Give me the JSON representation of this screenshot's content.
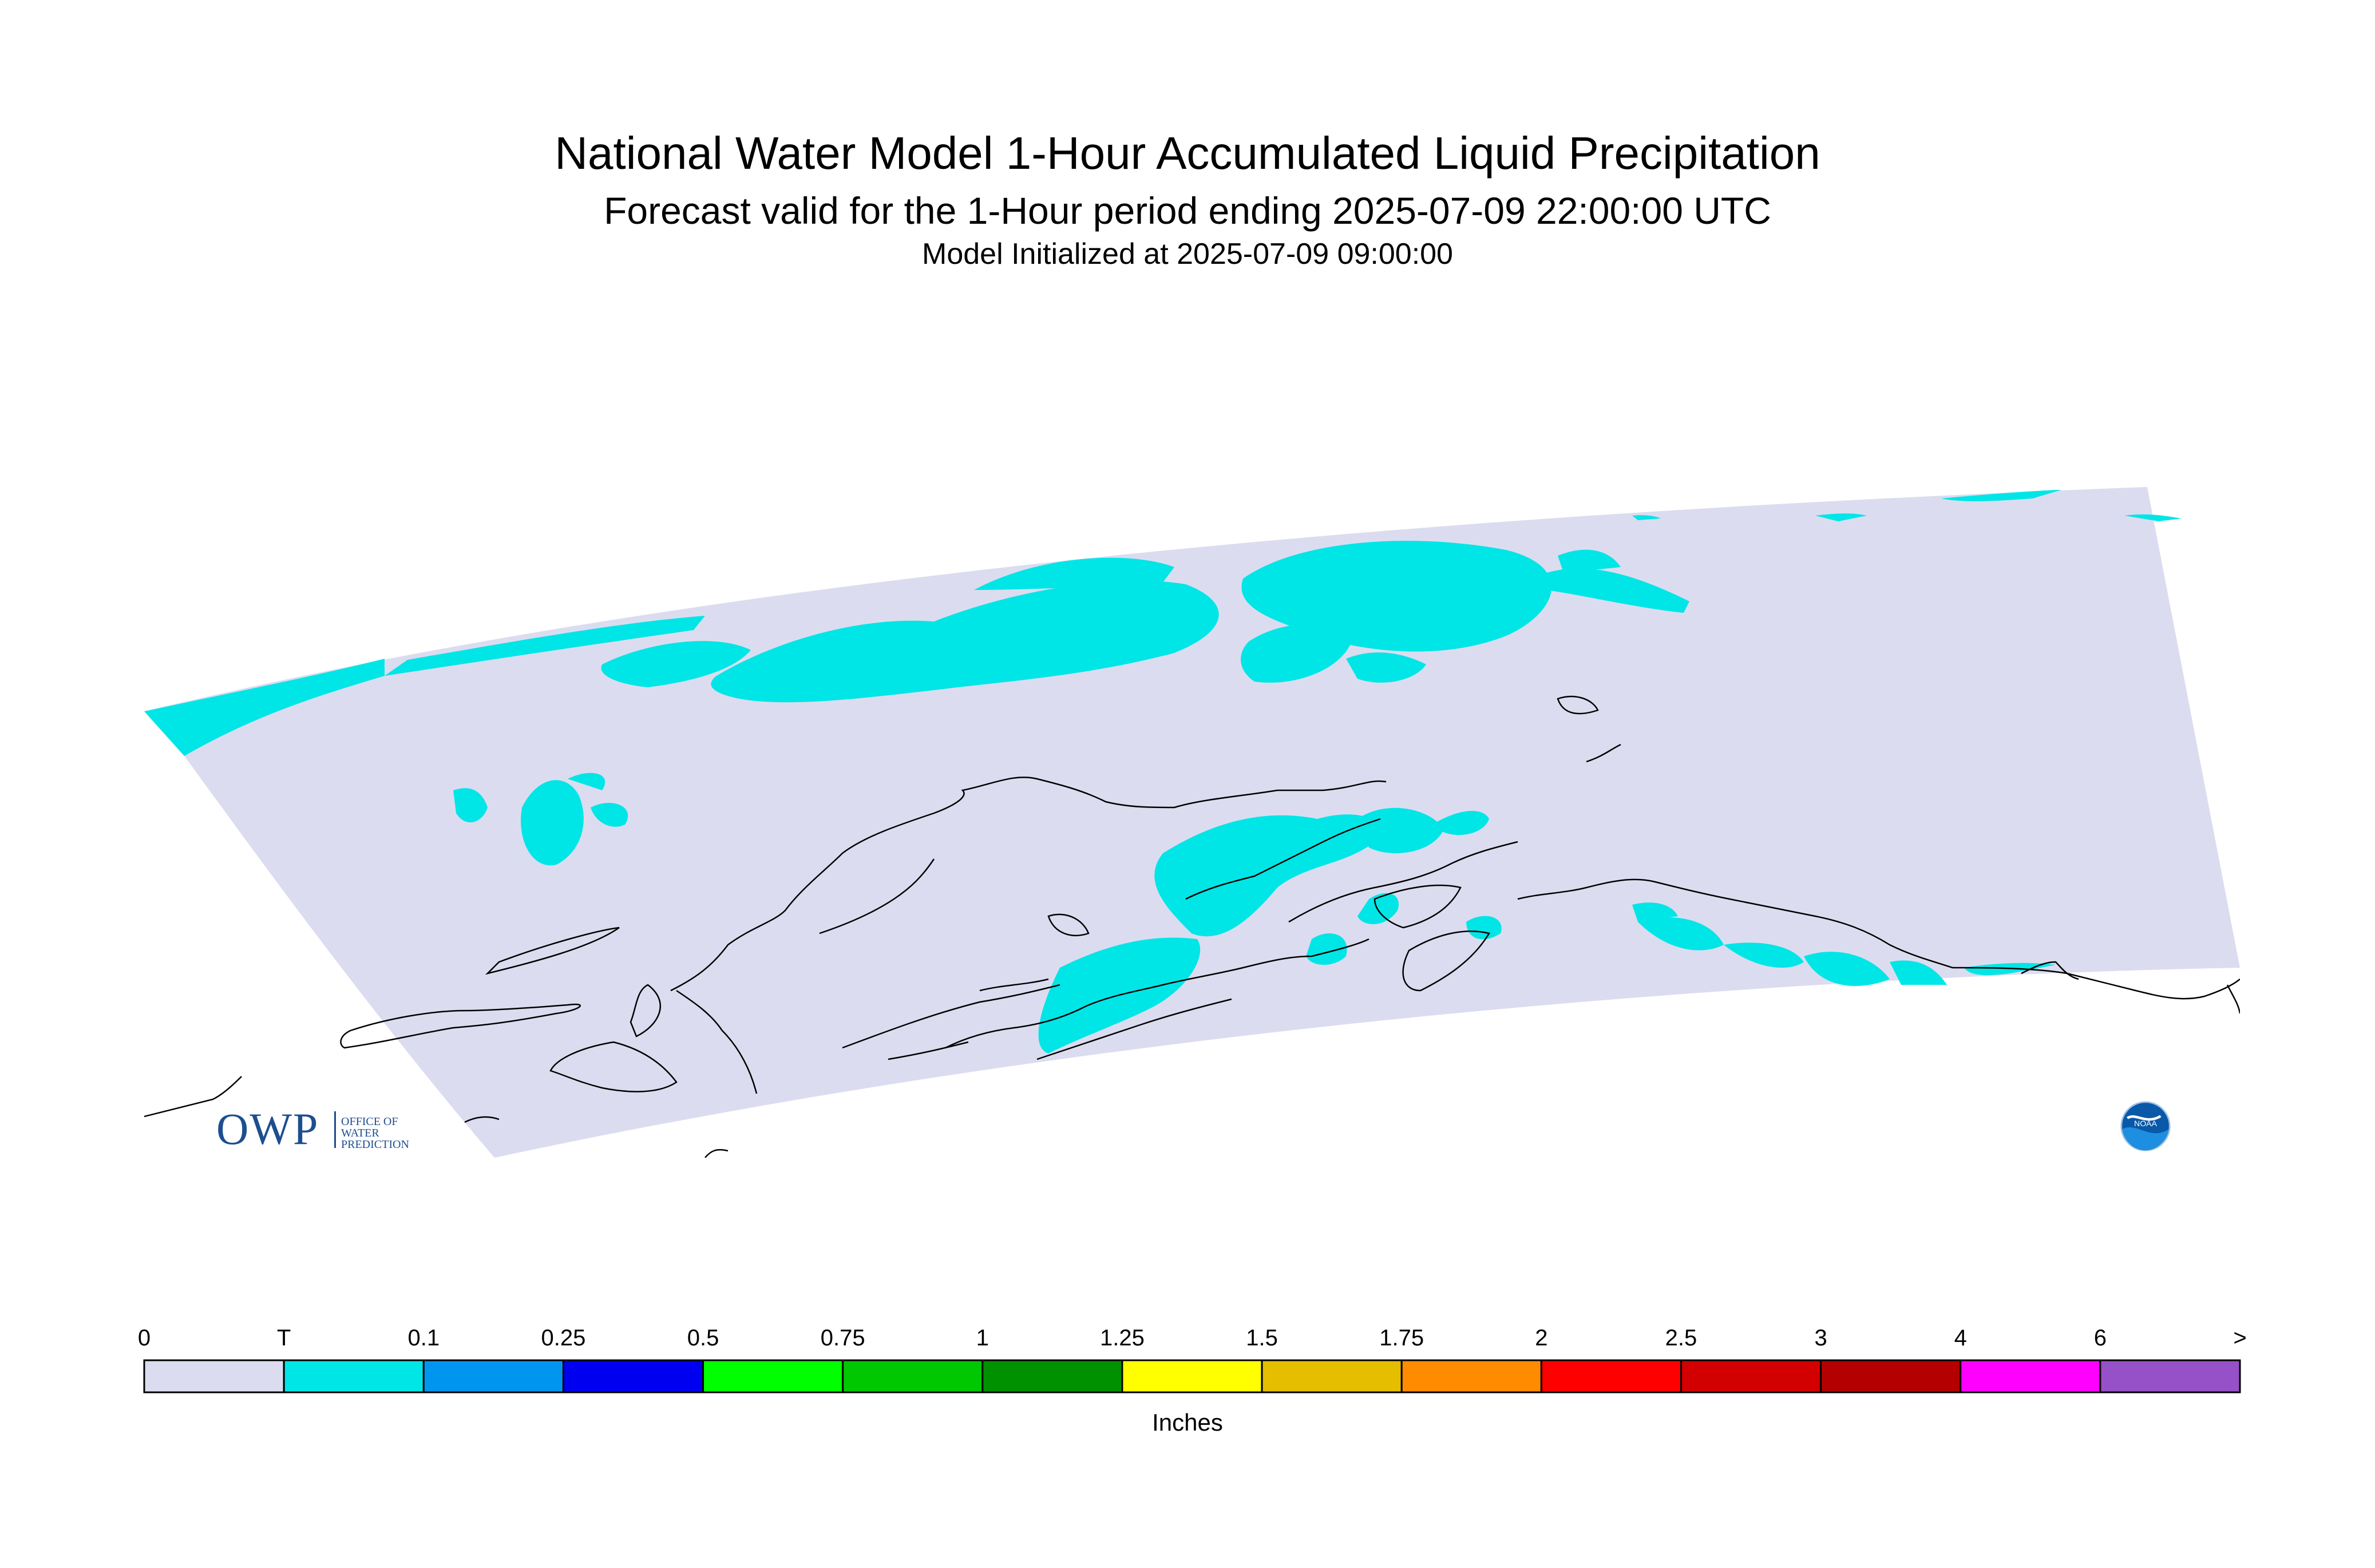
{
  "title": {
    "line1": "National Water Model 1-Hour Accumulated Liquid Precipitation",
    "line2": "Forecast valid for the 1-Hour period ending 2025-07-09 22:00:00 UTC",
    "line3": "Model Initialized at 2025-07-09 09:00:00"
  },
  "map": {
    "region": "Alaska",
    "domain_color": "#dcdcf0",
    "precip_color": "#00e6e6",
    "coast_color": "#000000"
  },
  "logos": {
    "owp_mark": "OWP",
    "owp_text_1": "OFFICE OF",
    "owp_text_2": "WATER",
    "owp_text_3": "PREDICTION",
    "noaa_icon": "noaa-logo-icon",
    "noaa_text": "NOAA"
  },
  "colorbar": {
    "unit_label": "Inches",
    "tick_labels": [
      "0",
      "T",
      "0.1",
      "0.25",
      "0.5",
      "0.75",
      "1",
      "1.25",
      "1.5",
      "1.75",
      "2",
      "2.5",
      "3",
      "4",
      "6",
      ">"
    ],
    "colors": [
      "#dcdcf0",
      "#00e6e6",
      "#0096f0",
      "#0000f0",
      "#00ff00",
      "#00c800",
      "#009100",
      "#ffff00",
      "#e6be00",
      "#ff8c00",
      "#ff0000",
      "#d20000",
      "#b40000",
      "#ff00ff",
      "#9650c8"
    ]
  }
}
